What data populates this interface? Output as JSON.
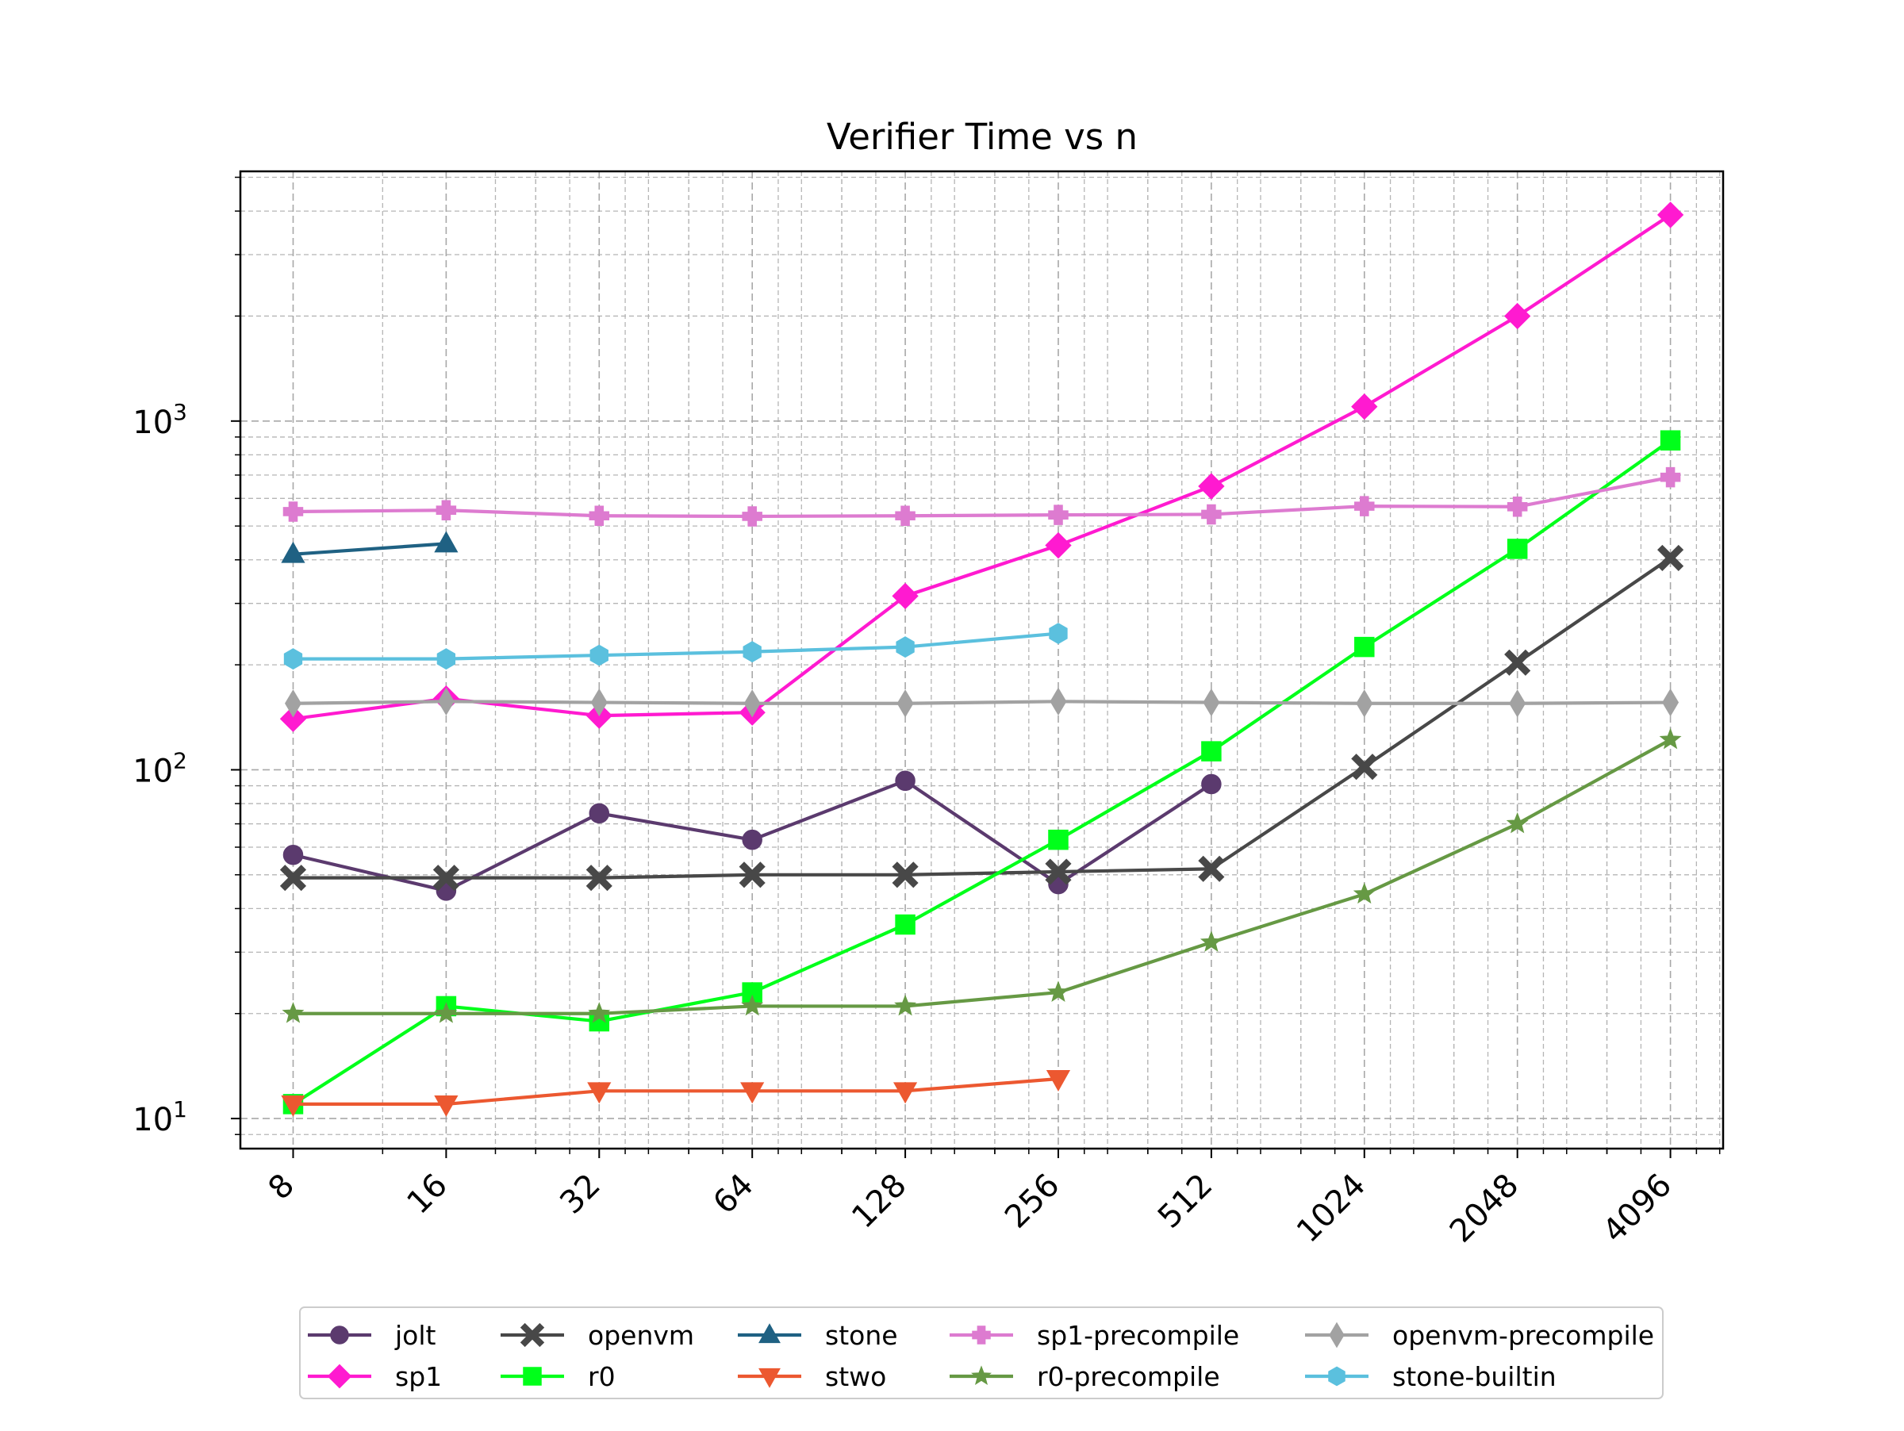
{
  "chart_data": {
    "type": "line",
    "title": "Verifier Time vs n",
    "xlabel": "",
    "ylabel": "",
    "x_scale": "log2",
    "y_scale": "log10",
    "x": [
      8,
      16,
      32,
      64,
      128,
      256,
      512,
      1024,
      2048,
      4096
    ],
    "x_tick_labels": [
      "8",
      "16",
      "32",
      "64",
      "128",
      "256",
      "512",
      "1024",
      "2048",
      "4096"
    ],
    "y_tick_labels": [
      {
        "base": "10",
        "exp": "1",
        "value": 10
      },
      {
        "base": "10",
        "exp": "2",
        "value": 100
      },
      {
        "base": "10",
        "exp": "3",
        "value": 1000
      }
    ],
    "xlim": [
      6.3,
      5200
    ],
    "ylim": [
      8.2,
      5200
    ],
    "grid": true,
    "legend_position": "bottom-center",
    "series": [
      {
        "name": "jolt",
        "color": "#5b3a6e",
        "marker": "circle",
        "values": [
          57,
          45,
          75,
          63,
          93,
          47,
          91,
          null,
          null,
          null
        ]
      },
      {
        "name": "sp1",
        "color": "#ff1ad0",
        "marker": "diamond",
        "values": [
          140,
          160,
          143,
          146,
          315,
          440,
          650,
          1100,
          2000,
          3900
        ]
      },
      {
        "name": "openvm",
        "color": "#484848",
        "marker": "x",
        "values": [
          49,
          49,
          49,
          50,
          50,
          51,
          52,
          102,
          203,
          405
        ]
      },
      {
        "name": "r0",
        "color": "#00ff1a",
        "marker": "square",
        "values": [
          11,
          21,
          19,
          23,
          36,
          63,
          113,
          225,
          430,
          880
        ]
      },
      {
        "name": "stone",
        "color": "#1f6183",
        "marker": "triangle-up",
        "values": [
          415,
          445,
          null,
          null,
          null,
          null,
          null,
          null,
          null,
          null
        ]
      },
      {
        "name": "stwo",
        "color": "#ec5830",
        "marker": "triangle-down",
        "values": [
          11,
          11,
          12,
          12,
          12,
          13,
          null,
          null,
          null,
          null
        ]
      },
      {
        "name": "sp1-precompile",
        "color": "#dd7bd0",
        "marker": "plus",
        "values": [
          550,
          555,
          535,
          533,
          535,
          538,
          540,
          570,
          568,
          690
        ]
      },
      {
        "name": "r0-precompile",
        "color": "#669944",
        "marker": "star",
        "values": [
          20,
          20,
          20,
          21,
          21,
          23,
          32,
          44,
          70,
          122
        ]
      },
      {
        "name": "openvm-precompile",
        "color": "#a2a2a2",
        "marker": "thin-diamond",
        "values": [
          155,
          157,
          156,
          155,
          155,
          157,
          156,
          155,
          155,
          156
        ]
      },
      {
        "name": "stone-builtin",
        "color": "#5bc0de",
        "marker": "hexagon",
        "values": [
          208,
          208,
          213,
          218,
          225,
          246,
          null,
          null,
          null,
          null
        ]
      }
    ]
  }
}
